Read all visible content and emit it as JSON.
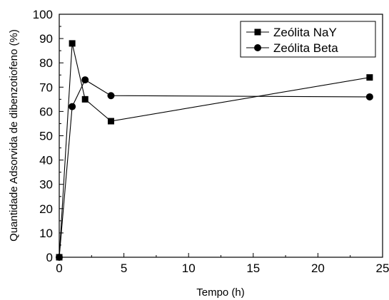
{
  "chart_data": {
    "type": "line",
    "title": "",
    "xlabel": "Tempo (h)",
    "ylabel": "Quantidade Adsorvida de dibenzotiofeno (%)",
    "xlim": [
      0,
      25
    ],
    "ylim": [
      0,
      100
    ],
    "xticks": [
      0,
      5,
      10,
      15,
      20,
      25
    ],
    "yticks": [
      0,
      10,
      20,
      30,
      40,
      50,
      60,
      70,
      80,
      90,
      100
    ],
    "grid": false,
    "legend_position": "top-right",
    "series": [
      {
        "name": "Zeólita NaY",
        "marker": "square",
        "color": "#000000",
        "x": [
          0,
          1,
          2,
          4,
          24
        ],
        "y": [
          0,
          88,
          65,
          56,
          74
        ]
      },
      {
        "name": "Zeólita Beta",
        "marker": "circle",
        "color": "#000000",
        "x": [
          0,
          1,
          2,
          4,
          24
        ],
        "y": [
          0,
          62,
          73,
          66.5,
          66
        ]
      }
    ]
  }
}
